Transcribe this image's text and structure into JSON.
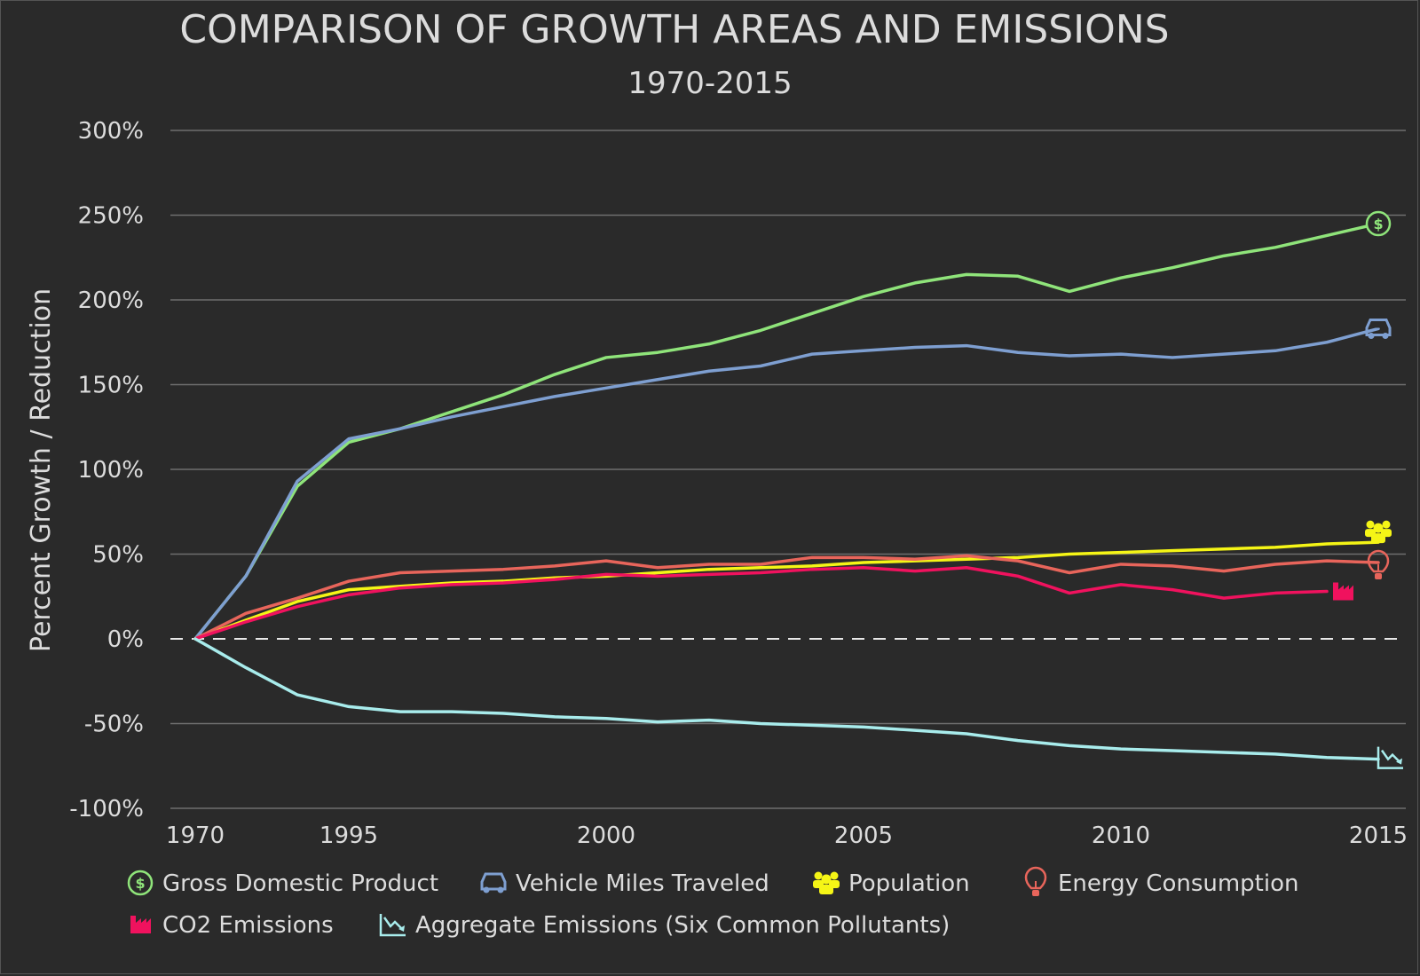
{
  "chart_data": {
    "type": "line",
    "title": "COMPARISON OF GROWTH AREAS AND EMISSIONS",
    "subtitle": "1970-2015",
    "ylabel": "Percent Growth / Reduction",
    "ylim": [
      -100,
      300
    ],
    "yticks": [
      300,
      250,
      200,
      150,
      100,
      50,
      0,
      -50,
      -100
    ],
    "ytick_labels": [
      "300%",
      "250%",
      "200%",
      "150%",
      "100%",
      "50%",
      "0%",
      "-50%",
      "-100%"
    ],
    "xtick_labels": [
      "1970",
      "1995",
      "2000",
      "2005",
      "2010",
      "2015"
    ],
    "x_axis_note": "Axis is broken: 1970 followed by 1980, 1990, then annual 1995-2015",
    "x": [
      "1970",
      "1980",
      "1990",
      "1995",
      "1996",
      "1997",
      "1998",
      "1999",
      "2000",
      "2001",
      "2002",
      "2003",
      "2004",
      "2005",
      "2006",
      "2007",
      "2008",
      "2009",
      "2010",
      "2011",
      "2012",
      "2013",
      "2014",
      "2015"
    ],
    "grid": true,
    "zero_line": "dashed",
    "legend_placement": "bottom",
    "series": [
      {
        "name": "Gross Domestic Product",
        "color": "#8fe47a",
        "icon": "dollar-icon",
        "values": [
          0,
          37,
          90,
          116,
          124,
          134,
          144,
          156,
          166,
          169,
          174,
          182,
          192,
          202,
          210,
          215,
          214,
          205,
          213,
          219,
          226,
          231,
          238,
          245
        ]
      },
      {
        "name": "Vehicle Miles Traveled",
        "color": "#7e9fd1",
        "icon": "car-icon",
        "values": [
          0,
          37,
          93,
          118,
          124,
          131,
          137,
          143,
          148,
          153,
          158,
          161,
          168,
          170,
          172,
          173,
          169,
          167,
          168,
          166,
          168,
          170,
          175,
          183
        ]
      },
      {
        "name": "Population",
        "color": "#f5f516",
        "icon": "people-icon",
        "values": [
          0,
          11,
          22,
          29,
          31,
          33,
          34,
          36,
          37,
          39,
          41,
          42,
          43,
          45,
          46,
          47,
          48,
          50,
          51,
          52,
          53,
          54,
          56,
          57
        ]
      },
      {
        "name": "Energy Consumption",
        "color": "#e8655b",
        "icon": "lightbulb-icon",
        "values": [
          0,
          15,
          24,
          34,
          39,
          40,
          41,
          43,
          46,
          42,
          44,
          44,
          48,
          48,
          47,
          49,
          46,
          39,
          44,
          43,
          40,
          44,
          46,
          45
        ]
      },
      {
        "name": "CO2 Emissions",
        "color": "#f0125e",
        "icon": "factory-icon",
        "values": [
          0,
          10,
          19,
          26,
          30,
          32,
          33,
          35,
          38,
          37,
          38,
          39,
          41,
          42,
          40,
          42,
          37,
          27,
          32,
          29,
          24,
          27,
          28,
          null
        ]
      },
      {
        "name": "Aggregate Emissions (Six Common Pollutants)",
        "color": "#a8ecec",
        "icon": "downtrend-icon",
        "values": [
          0,
          -17,
          -33,
          -40,
          -43,
          -43,
          -44,
          -46,
          -47,
          -49,
          -48,
          -50,
          -51,
          -52,
          -54,
          -56,
          -60,
          -63,
          -65,
          -66,
          -67,
          -68,
          -70,
          -71
        ]
      }
    ]
  }
}
